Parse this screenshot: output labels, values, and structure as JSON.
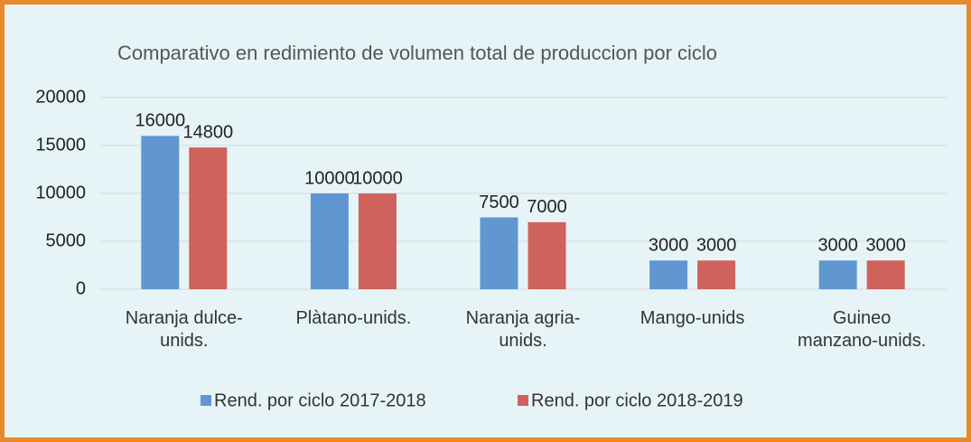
{
  "chart_data": {
    "type": "bar",
    "title": "Comparativo en redimiento de volumen total de produccion por ciclo",
    "categories": [
      "Naranja dulce-\nunids.",
      "Plàtano-unids.",
      "Naranja agria-\nunids.",
      "Mango-unids",
      "Guineo\nmanzano-unids."
    ],
    "series": [
      {
        "name": "Rend. por ciclo 2017-2018",
        "color": "#6197d0",
        "values": [
          16000,
          10000,
          7500,
          3000,
          3000
        ]
      },
      {
        "name": "Rend. por ciclo 2018-2019",
        "color": "#d0625c",
        "values": [
          14800,
          10000,
          7000,
          3000,
          3000
        ]
      }
    ],
    "ylim": [
      0,
      20000
    ],
    "yticks": [
      0,
      5000,
      10000,
      15000,
      20000
    ],
    "grid": true,
    "legend": "bottom"
  }
}
